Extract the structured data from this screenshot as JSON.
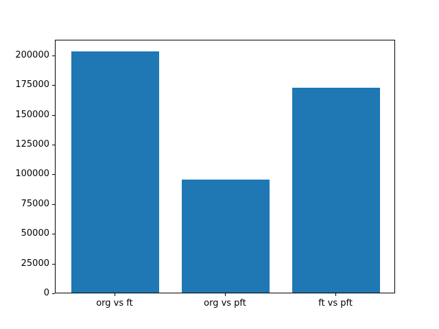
{
  "chart_data": {
    "type": "bar",
    "categories": [
      "org vs ft",
      "org vs pft",
      "ft vs pft"
    ],
    "values": [
      203000,
      95000,
      172000
    ],
    "yticks": [
      0,
      25000,
      50000,
      75000,
      100000,
      125000,
      150000,
      175000,
      200000
    ],
    "ylim": [
      0,
      213150
    ],
    "xlim": [
      -0.54,
      2.54
    ],
    "bar_width_units": 0.8,
    "bar_color": "#1f77b4",
    "spine_color": "#000000",
    "background_color": "#ffffff",
    "grid": "off",
    "legend": "none"
  }
}
